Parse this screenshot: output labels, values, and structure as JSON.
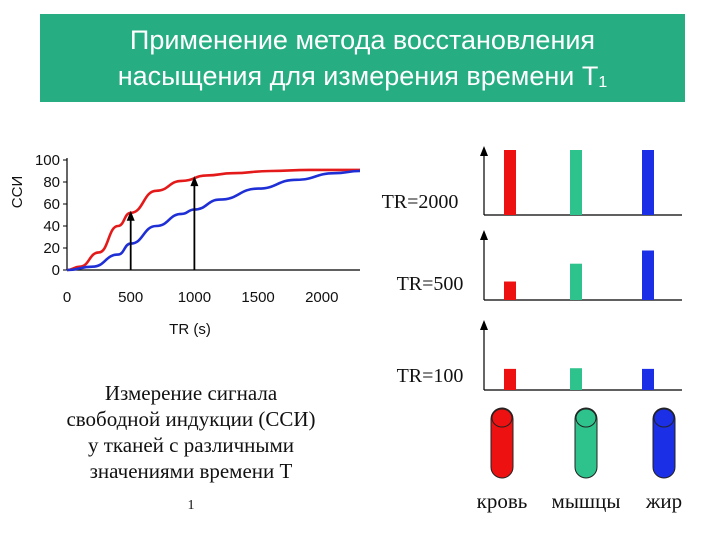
{
  "title": {
    "line1": "Применение метода восстановления",
    "line2": "насыщения для измерения времени T",
    "line2_sub": "1",
    "background": "#26ad82"
  },
  "chart_data": {
    "type": "line",
    "ylabel": "ССИ",
    "xlabel": "TR (s)",
    "xlim": [
      0,
      2300
    ],
    "ylim": [
      0,
      100
    ],
    "x_ticks": [
      "0",
      "500",
      "1000",
      "1500",
      "2000"
    ],
    "y_ticks": [
      "100",
      "80",
      "60",
      "40",
      "20",
      "0"
    ],
    "series": [
      {
        "color": "#e41a1a",
        "x": [
          0,
          100,
          250,
          400,
          500,
          700,
          900,
          1100,
          1300,
          1600,
          1900,
          2300
        ],
        "y": [
          0,
          3,
          16,
          40,
          52,
          72,
          81,
          86,
          88,
          90,
          91,
          91
        ]
      },
      {
        "color": "#1f2fd6",
        "x": [
          0,
          200,
          400,
          500,
          700,
          900,
          1000,
          1200,
          1500,
          1800,
          2100,
          2300
        ],
        "y": [
          0,
          3,
          14,
          24,
          40,
          51,
          55,
          64,
          74,
          82,
          88,
          90
        ]
      }
    ],
    "markers": [
      {
        "x": 500,
        "label_on_chart": false
      },
      {
        "x": 1000,
        "label_on_chart": false
      }
    ]
  },
  "bars": {
    "panels": [
      {
        "label": "TR=2000",
        "values": [
          1.0,
          1.0,
          1.0
        ]
      },
      {
        "label": "TR=500",
        "values": [
          0.28,
          0.55,
          0.75
        ]
      },
      {
        "label": "TR=100",
        "values": [
          0.32,
          0.33,
          0.32
        ]
      }
    ],
    "colors": [
      "#ee1111",
      "#2ec28c",
      "#1b2fe6"
    ]
  },
  "tubes": [
    {
      "label": "кровь",
      "color": "#ee1111"
    },
    {
      "label": "мышцы",
      "color": "#2ec28c"
    },
    {
      "label": "жир",
      "color": "#1b2fe6"
    }
  ],
  "caption": {
    "line1": "Измерение сигнала",
    "line2": "свободной индукции (ССИ)",
    "line3": "у тканей с различными",
    "line4": "значениями времени T",
    "line4_sub": "1"
  }
}
